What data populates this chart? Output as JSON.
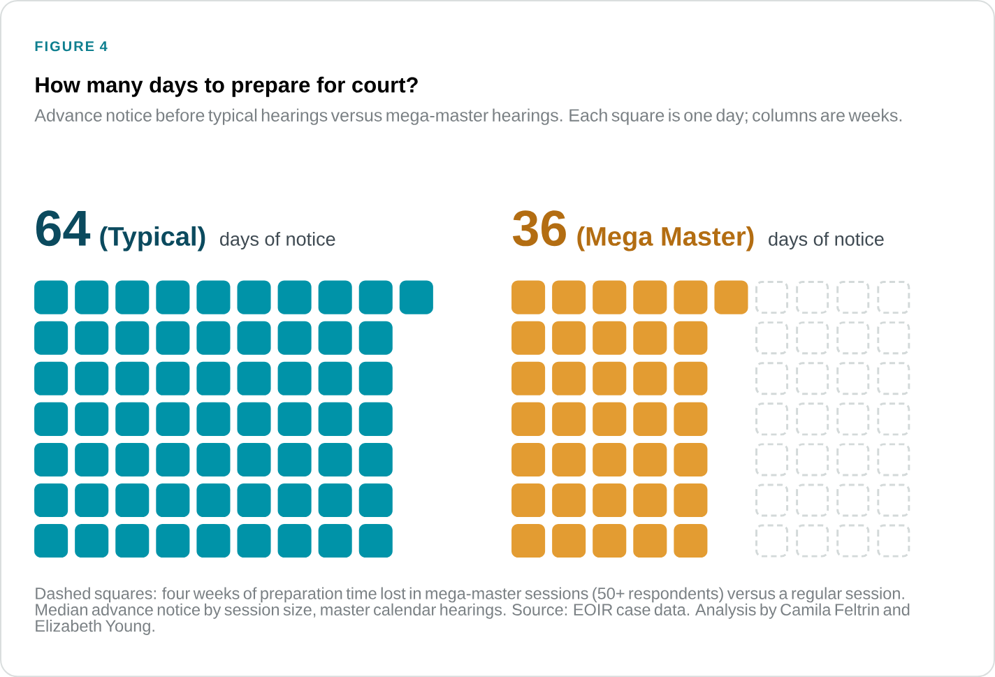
{
  "chart_data": {
    "type": "other",
    "title": "How many days to prepare for court?",
    "subtitle": "Advance notice before typical hearings versus mega-master hearings. Each square is one day; columns are weeks.",
    "categories": [
      "(Typical)",
      "(Mega Master)"
    ],
    "values": [
      64,
      36
    ],
    "value_labels": [
      "64",
      "36"
    ],
    "colors": [
      "#0093a8",
      "#e39c32"
    ],
    "annotations": [
      "FIGURE 4",
      "days of notice",
      "days of notice",
      "Dashed squares: four weeks of preparation time lost in mega-master sessions (50+ respondents) versus a regular session. Median advance notice by session size, master calendar hearings. Source: EOIR case data. Analysis by Camila Feltrin and Elizabeth Young."
    ]
  }
}
